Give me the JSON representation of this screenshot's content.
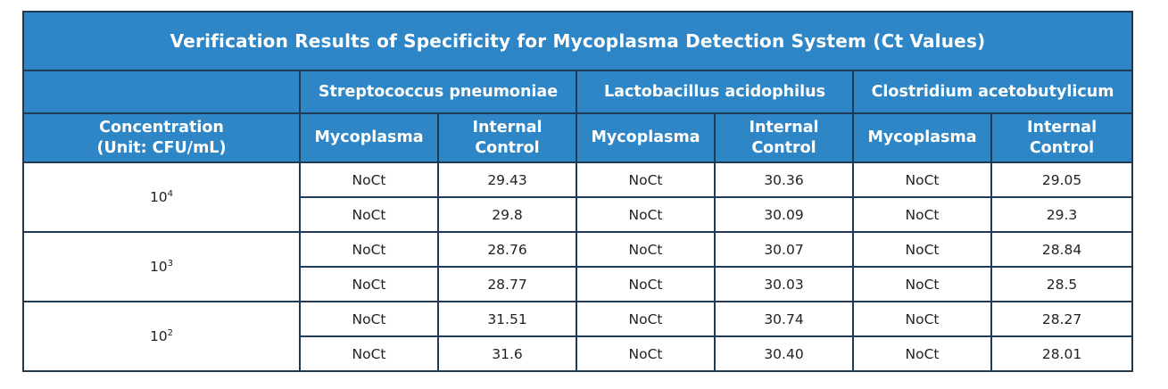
{
  "title": "Verification Results of Specificity for Mycoplasma Detection System (Ct Values)",
  "organisms": [
    "Streptococcus pneumoniae",
    "Lactobacillus acidophilus",
    "Clostridium acetobutylicum"
  ],
  "concentration_header": {
    "line1": "Concentration",
    "line2": "(Unit: CFU/mL)"
  },
  "sub_headers": {
    "mycoplasma": "Mycoplasma",
    "ic_line1": "Internal",
    "ic_line2": "Control"
  },
  "groups": [
    {
      "base": "10",
      "exp": "4",
      "rows": [
        [
          "NoCt",
          "29.43",
          "NoCt",
          "30.36",
          "NoCt",
          "29.05"
        ],
        [
          "NoCt",
          "29.8",
          "NoCt",
          "30.09",
          "NoCt",
          "29.3"
        ]
      ]
    },
    {
      "base": "10",
      "exp": "3",
      "rows": [
        [
          "NoCt",
          "28.76",
          "NoCt",
          "30.07",
          "NoCt",
          "28.84"
        ],
        [
          "NoCt",
          "28.77",
          "NoCt",
          "30.03",
          "NoCt",
          "28.5"
        ]
      ]
    },
    {
      "base": "10",
      "exp": "2",
      "rows": [
        [
          "NoCt",
          "31.51",
          "NoCt",
          "30.74",
          "NoCt",
          "28.27"
        ],
        [
          "NoCt",
          "31.6",
          "NoCt",
          "30.40",
          "NoCt",
          "28.01"
        ]
      ]
    }
  ],
  "colors": {
    "header_bg": "#2e86c6",
    "header_text": "#ffffff",
    "border": "#1f3a55"
  }
}
